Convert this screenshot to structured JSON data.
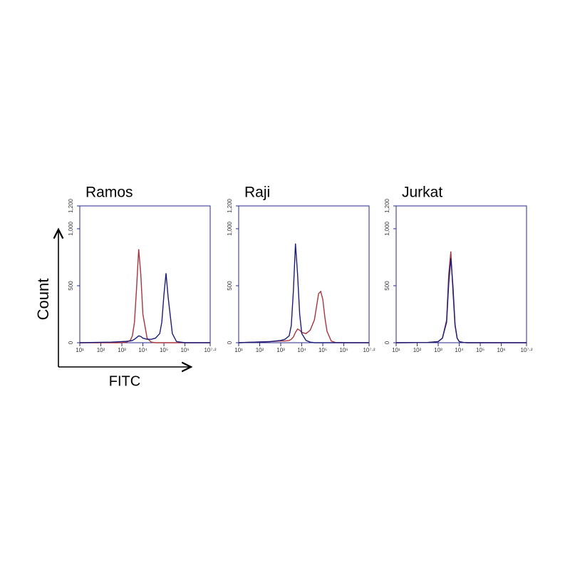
{
  "y_axis_label": "Count",
  "x_axis_label": "FITC",
  "chart_data": [
    {
      "type": "line",
      "title": "Ramos",
      "xscale": "log",
      "xlim": [
        10,
        15848932
      ],
      "ylim": [
        0,
        1200
      ],
      "xticks": [
        {
          "value": 10,
          "label": "10¹"
        },
        {
          "value": 100,
          "label": "10²"
        },
        {
          "value": 1000,
          "label": "10³"
        },
        {
          "value": 10000,
          "label": "10⁴"
        },
        {
          "value": 100000,
          "label": "10⁵"
        },
        {
          "value": 1000000,
          "label": "10⁶"
        },
        {
          "value": 15848932,
          "label": "10⁷·²"
        }
      ],
      "yticks": [
        0,
        500,
        {
          "value": 1000,
          "label": "1,000"
        },
        {
          "value": 1200,
          "label": "1,200"
        }
      ],
      "x": [
        10,
        316,
        1000,
        1585,
        2512,
        3162,
        3981,
        5012,
        6310,
        7943,
        10000,
        15849,
        25119,
        39811,
        63096,
        79433,
        100000,
        125893,
        158489,
        251189,
        398107,
        1000000,
        15848932
      ],
      "series": [
        {
          "color": "#a8343f",
          "values": [
            0,
            0,
            0,
            5,
            20,
            60,
            180,
            480,
            820,
            600,
            250,
            40,
            5,
            0,
            0,
            0,
            0,
            0,
            0,
            0,
            0,
            0,
            0
          ]
        },
        {
          "color": "#1c1c78",
          "values": [
            0,
            5,
            10,
            12,
            15,
            20,
            30,
            45,
            60,
            55,
            40,
            30,
            30,
            40,
            80,
            180,
            420,
            610,
            400,
            80,
            10,
            0,
            0
          ]
        }
      ]
    },
    {
      "type": "line",
      "title": "Raji",
      "xscale": "log",
      "xlim": [
        10,
        15848932
      ],
      "ylim": [
        0,
        1200
      ],
      "xticks": [
        {
          "value": 10,
          "label": "10¹"
        },
        {
          "value": 100,
          "label": "10²"
        },
        {
          "value": 1000,
          "label": "10³"
        },
        {
          "value": 10000,
          "label": "10⁴"
        },
        {
          "value": 100000,
          "label": "10⁵"
        },
        {
          "value": 1000000,
          "label": "10⁶"
        },
        {
          "value": 15848932,
          "label": "10⁷·²"
        }
      ],
      "yticks": [
        0,
        500,
        {
          "value": 1000,
          "label": "1,000"
        },
        {
          "value": 1200,
          "label": "1,200"
        }
      ],
      "x": [
        10,
        316,
        1000,
        1585,
        2512,
        3162,
        3981,
        5012,
        6310,
        7943,
        10000,
        15849,
        25119,
        39811,
        63096,
        79433,
        100000,
        125893,
        158489,
        251189,
        398107,
        1000000,
        15848932
      ],
      "series": [
        {
          "color": "#a8343f",
          "values": [
            0,
            10,
            15,
            15,
            20,
            30,
            50,
            90,
            120,
            110,
            90,
            80,
            110,
            200,
            430,
            450,
            380,
            220,
            100,
            15,
            2,
            0,
            0
          ]
        },
        {
          "color": "#1c1c78",
          "values": [
            0,
            10,
            20,
            30,
            60,
            150,
            450,
            870,
            600,
            250,
            80,
            20,
            5,
            0,
            0,
            0,
            0,
            0,
            0,
            0,
            0,
            0,
            0
          ]
        }
      ]
    },
    {
      "type": "line",
      "title": "Jurkat",
      "xscale": "log",
      "xlim": [
        10,
        15848932
      ],
      "ylim": [
        0,
        1200
      ],
      "xticks": [
        {
          "value": 10,
          "label": "10¹"
        },
        {
          "value": 100,
          "label": "10²"
        },
        {
          "value": 1000,
          "label": "10³"
        },
        {
          "value": 10000,
          "label": "10⁴"
        },
        {
          "value": 100000,
          "label": "10⁵"
        },
        {
          "value": 1000000,
          "label": "10⁶"
        },
        {
          "value": 15848932,
          "label": "10⁷·²"
        }
      ],
      "yticks": [
        0,
        500,
        {
          "value": 1000,
          "label": "1,000"
        },
        {
          "value": 1200,
          "label": "1,200"
        }
      ],
      "x": [
        10,
        316,
        1000,
        1585,
        2512,
        3162,
        3981,
        5012,
        6310,
        7943,
        10000,
        15849,
        25119,
        39811,
        63096,
        79433,
        100000,
        125893,
        158489,
        251189,
        398107,
        1000000,
        15848932
      ],
      "series": [
        {
          "color": "#a8343f",
          "values": [
            0,
            2,
            10,
            40,
            200,
            600,
            800,
            450,
            150,
            40,
            10,
            2,
            0,
            0,
            0,
            0,
            0,
            0,
            0,
            0,
            0,
            0,
            0
          ]
        },
        {
          "color": "#1c1c78",
          "values": [
            0,
            2,
            10,
            40,
            180,
            520,
            740,
            500,
            160,
            40,
            10,
            2,
            0,
            0,
            0,
            0,
            0,
            0,
            0,
            0,
            0,
            0,
            0
          ]
        }
      ]
    }
  ]
}
